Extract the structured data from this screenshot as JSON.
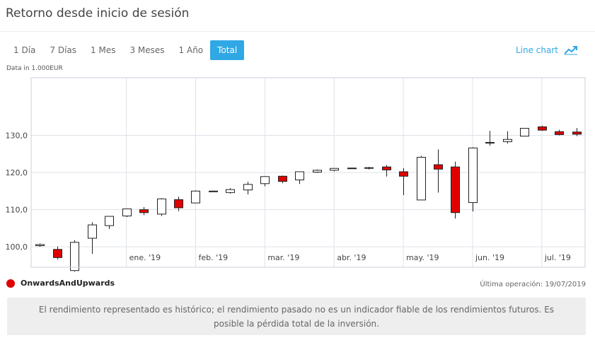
{
  "title": "Retorno desde inicio de sesión",
  "tabs": [
    {
      "label": "1 Día",
      "active": false
    },
    {
      "label": "7 Días",
      "active": false
    },
    {
      "label": "1 Mes",
      "active": false
    },
    {
      "label": "3 Meses",
      "active": false
    },
    {
      "label": "1 Año",
      "active": false
    },
    {
      "label": "Total",
      "active": true
    }
  ],
  "line_chart_label": "Line chart",
  "unit_label": "Data in 1.000EUR",
  "legend": {
    "name": "OnwardsAndUpwards",
    "color": "#e00000"
  },
  "last_operation": "Última operación: 19/07/2019",
  "disclaimer": "El rendimiento representado es histórico; el rendimiento pasado no es un indicador fiable de los rendimientos futuros. Es posible la pérdida total de la inversión.",
  "colors": {
    "accent": "#2fa8e5",
    "down": "#e00000",
    "up": "#ffffff",
    "grid": "#dde3ea"
  },
  "chart_data": {
    "type": "candlestick",
    "title": "",
    "ylabel": "Data in 1.000EUR",
    "ylim": [
      94.5,
      145.5
    ],
    "yticks": [
      100,
      110,
      120,
      130
    ],
    "ytick_labels": [
      "100,0",
      "110,0",
      "120,0",
      "130,0"
    ],
    "xticks": [
      {
        "label": "ene. '19",
        "x": 5.5
      },
      {
        "label": "feb. '19",
        "x": 9.5
      },
      {
        "label": "mar. '19",
        "x": 13.5
      },
      {
        "label": "abr. '19",
        "x": 17.5
      },
      {
        "label": "may. '19",
        "x": 21.5
      },
      {
        "label": "jun. '19",
        "x": 25.5
      },
      {
        "label": "jul. '19",
        "x": 29.5
      }
    ],
    "xlim": [
      0,
      32
    ],
    "candles": [
      {
        "o": 100.3,
        "h": 100.9,
        "l": 100.0,
        "c": 100.6
      },
      {
        "o": 99.3,
        "h": 100.1,
        "l": 96.6,
        "c": 97.1
      },
      {
        "o": 93.6,
        "h": 101.8,
        "l": 93.3,
        "c": 101.2
      },
      {
        "o": 102.3,
        "h": 106.6,
        "l": 98.1,
        "c": 105.9
      },
      {
        "o": 105.7,
        "h": 108.2,
        "l": 104.8,
        "c": 108.2
      },
      {
        "o": 108.3,
        "h": 110.3,
        "l": 108.0,
        "c": 110.2
      },
      {
        "o": 110.0,
        "h": 110.7,
        "l": 108.5,
        "c": 109.2
      },
      {
        "o": 108.8,
        "h": 113.1,
        "l": 108.3,
        "c": 112.9
      },
      {
        "o": 112.7,
        "h": 113.5,
        "l": 109.6,
        "c": 110.5
      },
      {
        "o": 111.8,
        "h": 115.2,
        "l": 111.8,
        "c": 115.0
      },
      {
        "o": 115.0,
        "h": 115.1,
        "l": 114.9,
        "c": 115.0
      },
      {
        "o": 114.6,
        "h": 115.8,
        "l": 114.3,
        "c": 115.4
      },
      {
        "o": 115.3,
        "h": 117.5,
        "l": 114.1,
        "c": 116.8
      },
      {
        "o": 117.0,
        "h": 119.0,
        "l": 116.3,
        "c": 118.9
      },
      {
        "o": 119.0,
        "h": 119.2,
        "l": 117.1,
        "c": 117.6
      },
      {
        "o": 118.0,
        "h": 120.2,
        "l": 116.9,
        "c": 120.2
      },
      {
        "o": 120.1,
        "h": 120.8,
        "l": 119.9,
        "c": 120.6
      },
      {
        "o": 120.6,
        "h": 121.2,
        "l": 120.3,
        "c": 121.1
      },
      {
        "o": 121.2,
        "h": 121.3,
        "l": 121.1,
        "c": 121.2
      },
      {
        "o": 121.2,
        "h": 121.5,
        "l": 120.8,
        "c": 121.3
      },
      {
        "o": 121.5,
        "h": 122.0,
        "l": 118.9,
        "c": 120.7
      },
      {
        "o": 120.2,
        "h": 121.2,
        "l": 113.9,
        "c": 119.0
      },
      {
        "o": 112.6,
        "h": 124.5,
        "l": 112.6,
        "c": 124.1
      },
      {
        "o": 122.1,
        "h": 126.2,
        "l": 114.6,
        "c": 120.9
      },
      {
        "o": 121.5,
        "h": 122.9,
        "l": 107.6,
        "c": 109.2
      },
      {
        "o": 111.9,
        "h": 126.8,
        "l": 109.5,
        "c": 126.6
      },
      {
        "o": 128.1,
        "h": 131.2,
        "l": 127.2,
        "c": 128.1
      },
      {
        "o": 128.3,
        "h": 131.1,
        "l": 127.8,
        "c": 128.9
      },
      {
        "o": 129.8,
        "h": 131.9,
        "l": 129.7,
        "c": 131.9
      },
      {
        "o": 132.3,
        "h": 132.6,
        "l": 131.2,
        "c": 131.4
      },
      {
        "o": 131.0,
        "h": 131.5,
        "l": 130.0,
        "c": 130.2
      },
      {
        "o": 130.9,
        "h": 132.0,
        "l": 129.8,
        "c": 130.3
      }
    ]
  }
}
